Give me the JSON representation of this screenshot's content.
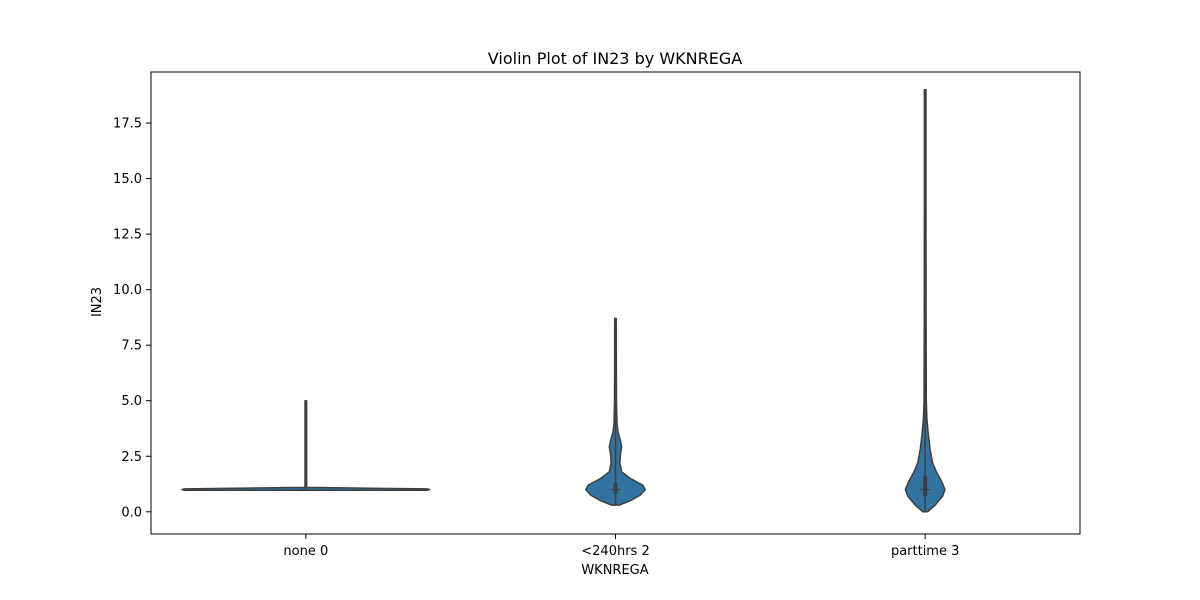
{
  "chart_data": {
    "type": "violin",
    "title": "Violin Plot of IN23 by WKNREGA",
    "xlabel": "WKNREGA",
    "ylabel": "IN23",
    "categories": [
      "none 0",
      "<240hrs 2",
      "parttime 3"
    ],
    "ylim": [
      -1.0,
      19.8
    ],
    "yticks": [
      0.0,
      2.5,
      5.0,
      7.5,
      10.0,
      12.5,
      15.0,
      17.5
    ],
    "ytick_labels": [
      "0.0",
      "2.5",
      "5.0",
      "7.5",
      "10.0",
      "12.5",
      "15.0",
      "17.5"
    ],
    "grid": false,
    "color": "#3274a1",
    "edge_color": "#3f3f3f",
    "violins": [
      {
        "category": "none 0",
        "min": 1.0,
        "max": 5.0,
        "median": 1.0,
        "q1": 1.0,
        "q3": 1.0,
        "profile": [
          [
            0.97,
            0.98
          ],
          [
            1.0,
            1.0
          ],
          [
            1.03,
            0.98
          ],
          [
            1.1,
            0.004
          ],
          [
            2.0,
            0.004
          ],
          [
            5.0,
            0.004
          ]
        ]
      },
      {
        "category": "<240hrs 2",
        "min": 0.3,
        "max": 8.7,
        "median": 1.0,
        "q1": 0.8,
        "q3": 1.3,
        "profile": [
          [
            0.3,
            0.03
          ],
          [
            0.5,
            0.12
          ],
          [
            0.75,
            0.2
          ],
          [
            1.0,
            0.24
          ],
          [
            1.2,
            0.22
          ],
          [
            1.5,
            0.12
          ],
          [
            1.8,
            0.05
          ],
          [
            2.2,
            0.035
          ],
          [
            2.6,
            0.04
          ],
          [
            2.9,
            0.05
          ],
          [
            3.2,
            0.04
          ],
          [
            3.6,
            0.02
          ],
          [
            4.0,
            0.012
          ],
          [
            5.0,
            0.008
          ],
          [
            6.5,
            0.007
          ],
          [
            8.7,
            0.006
          ]
        ]
      },
      {
        "category": "parttime 3",
        "min": 0.0,
        "max": 19.0,
        "median": 1.0,
        "q1": 0.7,
        "q3": 1.6,
        "profile": [
          [
            0.0,
            0.02
          ],
          [
            0.3,
            0.08
          ],
          [
            0.7,
            0.14
          ],
          [
            1.0,
            0.16
          ],
          [
            1.4,
            0.13
          ],
          [
            1.8,
            0.09
          ],
          [
            2.2,
            0.06
          ],
          [
            2.8,
            0.04
          ],
          [
            3.5,
            0.025
          ],
          [
            4.2,
            0.014
          ],
          [
            5.0,
            0.009
          ],
          [
            7.0,
            0.008
          ],
          [
            10.0,
            0.007
          ],
          [
            14.0,
            0.006
          ],
          [
            19.0,
            0.006
          ]
        ]
      }
    ]
  }
}
